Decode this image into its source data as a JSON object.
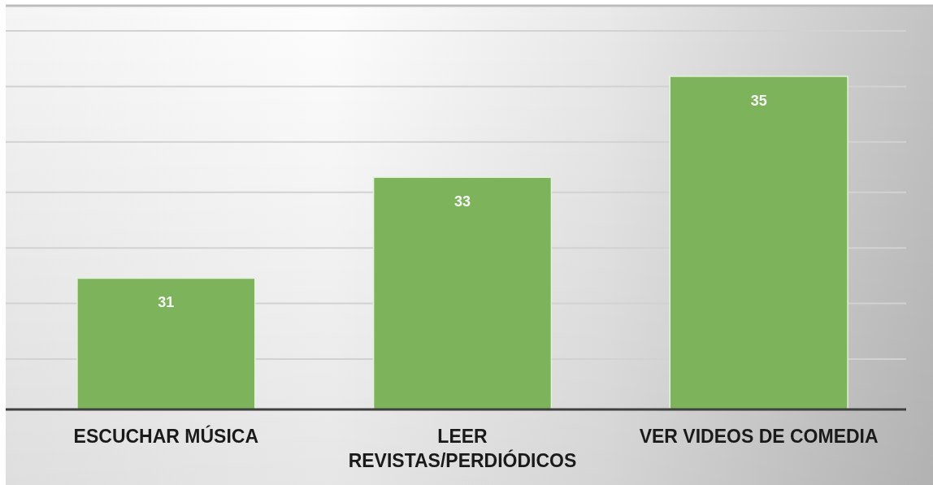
{
  "chart_data": {
    "type": "bar",
    "categories": [
      "ESCUCHAR MÚSICA",
      "LEER REVISTAS/PERDIÓDICOS",
      "VER VIDEOS DE COMEDIA"
    ],
    "values": [
      31,
      33,
      35
    ],
    "color": "#7db35a",
    "ylim": [
      28.4,
      36.4
    ],
    "yticks": [
      {
        "value": 29.4,
        "label": null
      },
      {
        "value": 30.5,
        "label": null
      },
      {
        "value": 31.6,
        "label": null
      },
      {
        "value": 32.7,
        "label": null
      },
      {
        "value": 33.7,
        "label": null
      },
      {
        "value": 34.8,
        "label": null
      },
      {
        "value": 35.9,
        "label": null
      }
    ],
    "grid": "y",
    "tick_labels": "x",
    "data_labels": true
  }
}
